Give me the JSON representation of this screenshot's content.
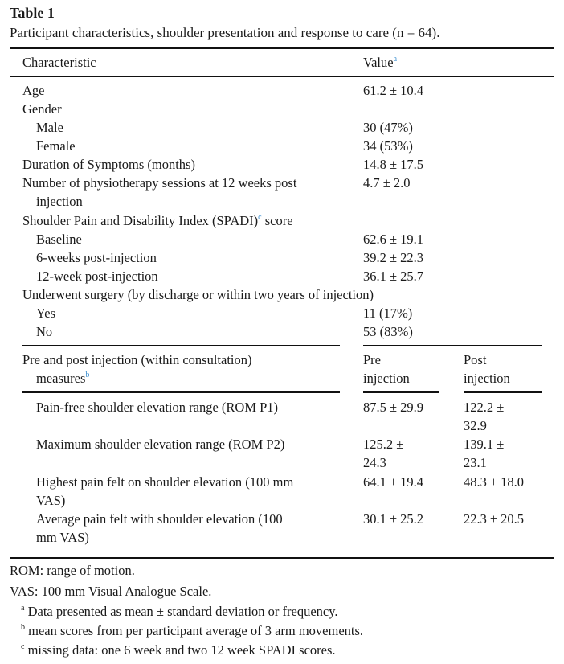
{
  "title": "Table 1",
  "caption": "Participant characteristics, shoulder presentation and response to care (n = 64).",
  "header": {
    "characteristic": "Characteristic",
    "value": "Value",
    "value_note": "a"
  },
  "rows": [
    {
      "label": "Age",
      "value": "61.2 ± 10.4"
    },
    {
      "label": "Gender",
      "value": ""
    },
    {
      "label": "Male",
      "value": "30 (47%)"
    },
    {
      "label": "Female",
      "value": "34 (53%)"
    },
    {
      "label": "Duration of Symptoms (months)",
      "value": "14.8 ± 17.5"
    },
    {
      "label": "Number of physiotherapy sessions at 12 weeks post",
      "label2": "injection",
      "value": "4.7 ± 2.0"
    },
    {
      "label": "Shoulder Pain and Disability Index (SPADI)",
      "note": "c",
      "label_tail": " score",
      "value": ""
    },
    {
      "label": "Baseline",
      "value": "62.6 ± 19.1"
    },
    {
      "label": "6-weeks post-injection",
      "value": "39.2 ± 22.3"
    },
    {
      "label": "12-week post-injection",
      "value": "36.1 ± 25.7"
    },
    {
      "label": "Underwent surgery (by discharge or within two years of injection)",
      "value": ""
    },
    {
      "label": "Yes",
      "value": "11 (17%)"
    },
    {
      "label": "No",
      "value": "53 (83%)"
    }
  ],
  "section2": {
    "label": "Pre and post injection (within consultation)",
    "label2": "measures",
    "note": "b",
    "pre_l1": "Pre",
    "pre_l2": "injection",
    "post_l1": "Post",
    "post_l2": "injection",
    "rows": [
      {
        "label": "Pain-free shoulder elevation range (ROM P1)",
        "label2": "",
        "pre": "87.5 ± 29.9",
        "pre2": "",
        "post": "122.2 ±",
        "post2": "32.9"
      },
      {
        "label": "Maximum shoulder elevation range (ROM P2)",
        "label2": "",
        "pre": "125.2 ±",
        "pre2": "24.3",
        "post": "139.1 ±",
        "post2": "23.1"
      },
      {
        "label": "Highest pain felt on shoulder elevation (100 mm",
        "label2": "VAS)",
        "pre": "64.1 ± 19.4",
        "pre2": "",
        "post": "48.3 ± 18.0",
        "post2": ""
      },
      {
        "label": "Average pain felt with shoulder elevation (100",
        "label2": "mm VAS)",
        "pre": "30.1 ± 25.2",
        "pre2": "",
        "post": "22.3 ± 20.5",
        "post2": ""
      }
    ]
  },
  "footnotes": {
    "rom": "ROM: range of motion.",
    "vas": "VAS: 100 mm Visual Analogue Scale.",
    "a_mark": "a",
    "a": "Data presented as mean ± standard deviation or frequency.",
    "b_mark": "b",
    "b": "mean scores from per participant average of 3 arm movements.",
    "c_mark": "c",
    "c": "missing data: one 6 week and two 12 week SPADI scores."
  },
  "colors": {
    "link": "#3b8fd0",
    "rule": "#111111"
  }
}
